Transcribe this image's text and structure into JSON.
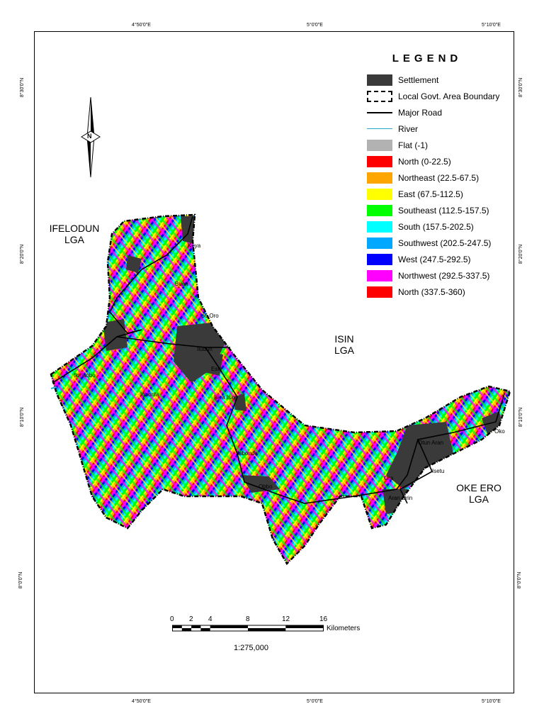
{
  "ticks": {
    "top": [
      "4°50'0\"E",
      "5°0'0\"E",
      "5°10'0\"E"
    ],
    "bottom": [
      "4°50'0\"E",
      "5°0'0\"E",
      "5°10'0\"E"
    ],
    "left": [
      "8°30'0\"N",
      "8°20'0\"N",
      "8°10'0\"N",
      "8°0'0\"N"
    ],
    "right": [
      "8°30'0\"N",
      "8°20'0\"N",
      "8°10'0\"N",
      "8°0'0\"N"
    ]
  },
  "north_arrow_letter": "N",
  "lga_labels": {
    "ifelodun": "IFELODUN\nLGA",
    "isin": "ISIN\nLGA",
    "oke_ero": "OKE ERO\nLGA"
  },
  "towns": [
    "Koya",
    "Buari",
    "Ipo Oro",
    "Iludun",
    "Esie",
    "Iloriaqbo",
    "Igbonla",
    "Ijara Isin",
    "Ilabonde",
    "Obbo",
    "Oko",
    "Otun Aran",
    "Isetu",
    "Ora",
    "Aran Orin"
  ],
  "legend": {
    "title": "LEGEND",
    "items": [
      {
        "label": "Settlement",
        "color": "#3a3a3a",
        "kind": "box"
      },
      {
        "label": "Local Govt. Area Boundary",
        "color": "#000000",
        "kind": "dashbox"
      },
      {
        "label": "Major Road",
        "color": "#000000",
        "kind": "line"
      },
      {
        "label": "River",
        "color": "#2aa8c8",
        "kind": "thinline"
      },
      {
        "label": "Flat (-1)",
        "color": "#b2b2b2",
        "kind": "box"
      },
      {
        "label": "North (0-22.5)",
        "color": "#ff0000",
        "kind": "box"
      },
      {
        "label": "Northeast (22.5-67.5)",
        "color": "#ffa500",
        "kind": "box"
      },
      {
        "label": "East (67.5-112.5)",
        "color": "#ffff00",
        "kind": "box"
      },
      {
        "label": "Southeast (112.5-157.5)",
        "color": "#00ff00",
        "kind": "box"
      },
      {
        "label": "South (157.5-202.5)",
        "color": "#00ffff",
        "kind": "box"
      },
      {
        "label": "Southwest (202.5-247.5)",
        "color": "#00a8ff",
        "kind": "box"
      },
      {
        "label": "West (247.5-292.5)",
        "color": "#0000ff",
        "kind": "box"
      },
      {
        "label": "Northwest (292.5-337.5)",
        "color": "#ff00ff",
        "kind": "box"
      },
      {
        "label": "North (337.5-360)",
        "color": "#ff0000",
        "kind": "box"
      }
    ]
  },
  "scale_bar": {
    "labels": [
      "0",
      "2",
      "4",
      "8",
      "12",
      "16"
    ],
    "unit": "Kilometers",
    "ratio": "1:275,000"
  }
}
